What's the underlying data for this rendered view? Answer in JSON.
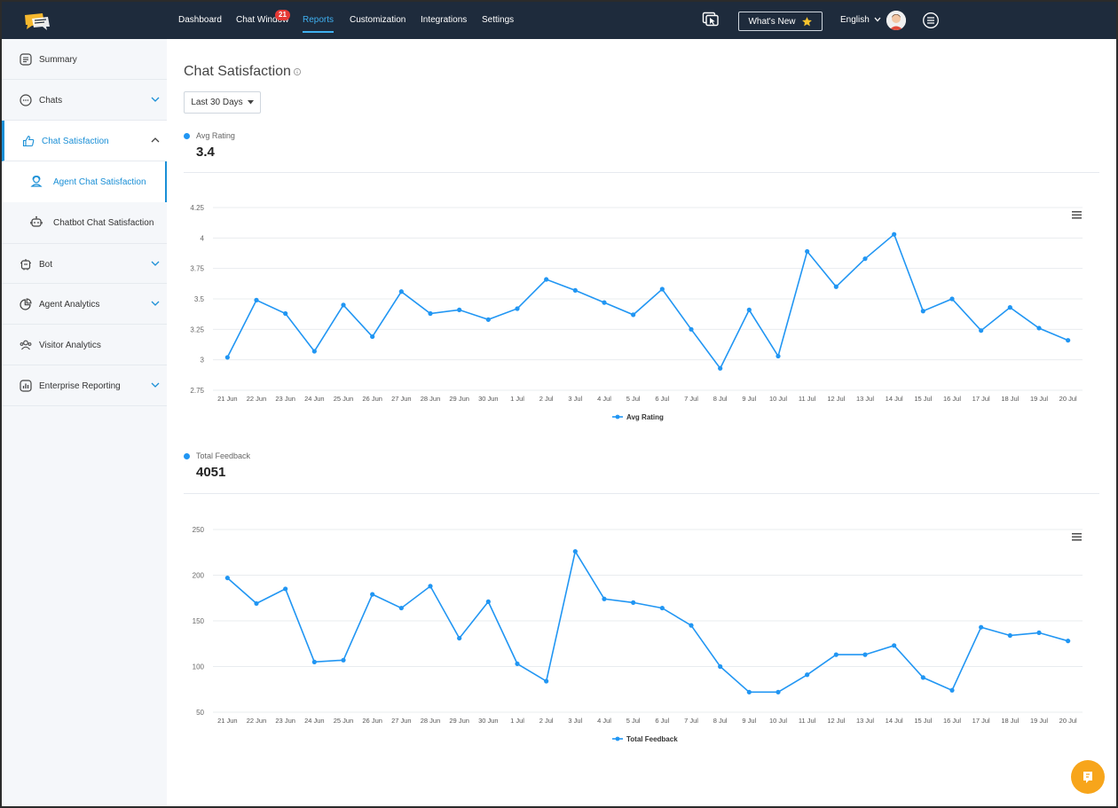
{
  "colors": {
    "nav_bg": "#1e2b3c",
    "accent": "#3fb0f0",
    "series": "#2196f3",
    "fab": "#f7a51b",
    "badge": "#e53935"
  },
  "nav": {
    "items": [
      "Dashboard",
      "Chat Window",
      "Reports",
      "Customization",
      "Integrations",
      "Settings"
    ],
    "active": "Reports",
    "chat_window_badge": "21",
    "whats_new": "What's New",
    "language": "English"
  },
  "sidebar": {
    "items": [
      {
        "label": "Summary",
        "icon": "document-icon",
        "expandable": false
      },
      {
        "label": "Chats",
        "icon": "chat-bubble-icon",
        "expandable": true
      },
      {
        "label": "Chat Satisfaction",
        "icon": "thumbs-up-icon",
        "expandable": true,
        "expanded": true,
        "active": true
      },
      {
        "label": "Bot",
        "icon": "bot-icon",
        "expandable": true
      },
      {
        "label": "Agent Analytics",
        "icon": "pie-chart-icon",
        "expandable": true
      },
      {
        "label": "Visitor Analytics",
        "icon": "visitors-icon",
        "expandable": false
      },
      {
        "label": "Enterprise Reporting",
        "icon": "bar-chart-icon",
        "expandable": true
      }
    ],
    "subitems": [
      {
        "label": "Agent Chat Satisfaction",
        "icon": "agent-icon",
        "selected": true
      },
      {
        "label": "Chatbot Chat Satisfaction",
        "icon": "chatbot-icon",
        "selected": false
      }
    ]
  },
  "main": {
    "title": "Chat Satisfaction",
    "date_range": "Last 30 Days"
  },
  "metrics": [
    {
      "label": "Avg Rating",
      "value": "3.4"
    },
    {
      "label": "Total Feedback",
      "value": "4051"
    }
  ],
  "chart_data": [
    {
      "type": "line",
      "categories": [
        "21 Jun",
        "22 Jun",
        "23 Jun",
        "24 Jun",
        "25 Jun",
        "26 Jun",
        "27 Jun",
        "28 Jun",
        "29 Jun",
        "30 Jun",
        "1 Jul",
        "2 Jul",
        "3 Jul",
        "4 Jul",
        "5 Jul",
        "6 Jul",
        "7 Jul",
        "8 Jul",
        "9 Jul",
        "10 Jul",
        "11 Jul",
        "12 Jul",
        "13 Jul",
        "14 Jul",
        "15 Jul",
        "16 Jul",
        "17 Jul",
        "18 Jul",
        "19 Jul",
        "20 Jul"
      ],
      "series": [
        {
          "name": "Avg Rating",
          "values": [
            3.02,
            3.49,
            3.38,
            3.07,
            3.45,
            3.19,
            3.56,
            3.38,
            3.41,
            3.33,
            3.42,
            3.66,
            3.57,
            3.47,
            3.37,
            3.58,
            3.25,
            2.93,
            3.41,
            3.03,
            3.89,
            3.6,
            3.83,
            4.03,
            3.4,
            3.5,
            3.24,
            3.43,
            3.26,
            3.16
          ]
        }
      ],
      "yticks": [
        "2.75",
        "3",
        "3.25",
        "3.5",
        "3.75",
        "4",
        "4.25"
      ],
      "ylim": [
        2.75,
        4.25
      ],
      "grid": true,
      "legend": "bottom-center"
    },
    {
      "type": "line",
      "categories": [
        "21 Jun",
        "22 Jun",
        "23 Jun",
        "24 Jun",
        "25 Jun",
        "26 Jun",
        "27 Jun",
        "28 Jun",
        "29 Jun",
        "30 Jun",
        "1 Jul",
        "2 Jul",
        "3 Jul",
        "4 Jul",
        "5 Jul",
        "6 Jul",
        "7 Jul",
        "8 Jul",
        "9 Jul",
        "10 Jul",
        "11 Jul",
        "12 Jul",
        "13 Jul",
        "14 Jul",
        "15 Jul",
        "16 Jul",
        "17 Jul",
        "18 Jul",
        "19 Jul",
        "20 Jul"
      ],
      "series": [
        {
          "name": "Total Feedback",
          "values": [
            197,
            169,
            185,
            105,
            107,
            179,
            164,
            188,
            131,
            171,
            103,
            84,
            226,
            174,
            170,
            164,
            145,
            100,
            72,
            72,
            91,
            113,
            113,
            123,
            88,
            74,
            143,
            134,
            137,
            128
          ]
        }
      ],
      "yticks": [
        "50",
        "100",
        "150",
        "200",
        "250"
      ],
      "ylim": [
        50,
        250
      ],
      "grid": true,
      "legend": "bottom-center"
    }
  ]
}
